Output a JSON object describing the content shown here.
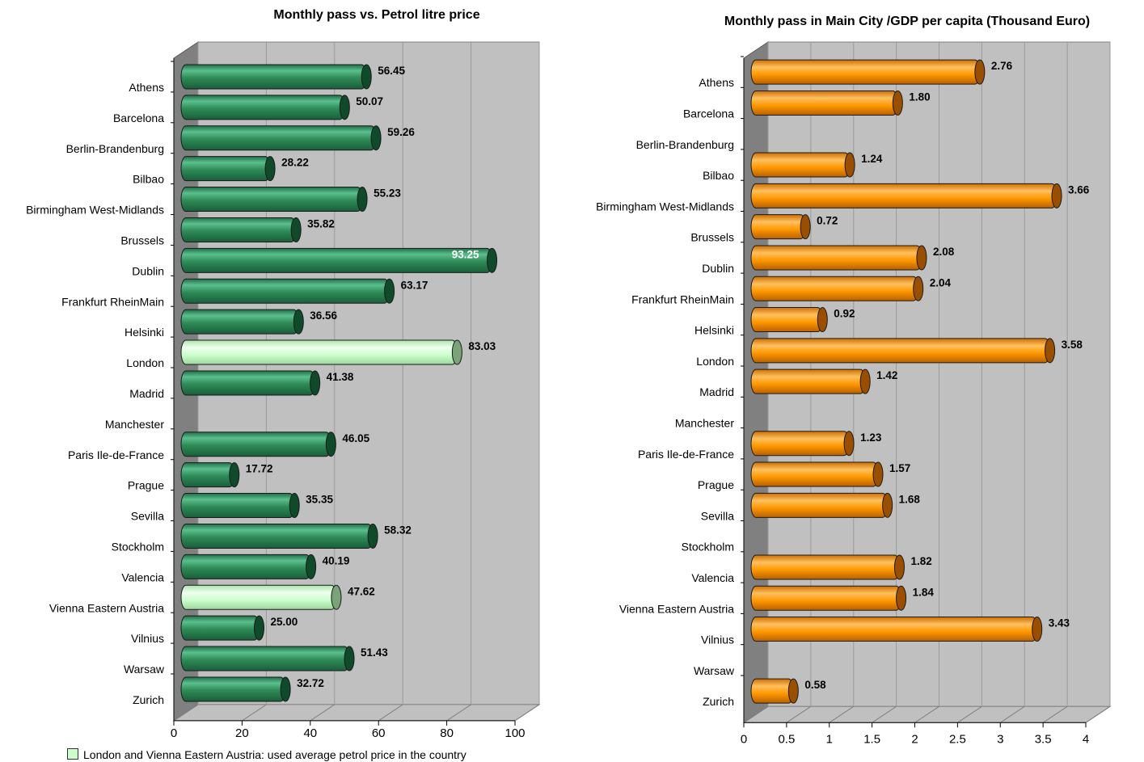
{
  "chart_data": [
    {
      "type": "bar",
      "orientation": "horizontal",
      "title": "Monthly pass vs. Petrol litre price",
      "categories": [
        "Athens",
        "Barcelona",
        "Berlin-Brandenburg",
        "Bilbao",
        "Birmingham West-Midlands",
        "Brussels",
        "Dublin",
        "Frankfurt RheinMain",
        "Helsinki",
        "London",
        "Madrid",
        "Manchester",
        "Paris Ile-de-France",
        "Prague",
        "Sevilla",
        "Stockholm",
        "Valencia",
        "Vienna Eastern Austria",
        "Vilnius",
        "Warsaw",
        "Zurich"
      ],
      "values": [
        56.45,
        50.07,
        59.26,
        28.22,
        55.23,
        35.82,
        93.25,
        63.17,
        36.56,
        83.03,
        41.38,
        null,
        46.05,
        17.72,
        35.35,
        58.32,
        40.19,
        47.62,
        25.0,
        51.43,
        32.72
      ],
      "value_labels": [
        "56.45",
        "50.07",
        "59.26",
        "28.22",
        "55.23",
        "35.82",
        "93.25",
        "63.17",
        "36.56",
        "83.03",
        "41.38",
        "",
        "46.05",
        "17.72",
        "35.35",
        "58.32",
        "40.19",
        "47.62",
        "25.00",
        "51.43",
        "32.72"
      ],
      "highlighted": [
        "London",
        "Vienna Eastern Austria"
      ],
      "xlim": [
        0,
        100
      ],
      "xticks": [
        "0",
        "20",
        "40",
        "60",
        "80",
        "100"
      ],
      "bar_color": "#2e8b57",
      "highlight_color": "#ccffcc",
      "grid": true
    },
    {
      "type": "bar",
      "orientation": "horizontal",
      "title": "Monthly pass in Main City /GDP per capita (Thousand Euro)",
      "categories": [
        "Athens",
        "Barcelona",
        "Berlin-Brandenburg",
        "Bilbao",
        "Birmingham West-Midlands",
        "Brussels",
        "Dublin",
        "Frankfurt RheinMain",
        "Helsinki",
        "London",
        "Madrid",
        "Manchester",
        "Paris Ile-de-France",
        "Prague",
        "Sevilla",
        "Stockholm",
        "Valencia",
        "Vienna Eastern Austria",
        "Vilnius",
        "Warsaw",
        "Zurich"
      ],
      "values": [
        2.76,
        1.8,
        null,
        1.24,
        3.66,
        0.72,
        2.08,
        2.04,
        0.92,
        3.58,
        1.42,
        null,
        1.23,
        1.57,
        1.68,
        null,
        1.82,
        1.84,
        3.43,
        null,
        0.58
      ],
      "value_labels": [
        "2.76",
        "1.80",
        "",
        "1.24",
        "3.66",
        "0.72",
        "2.08",
        "2.04",
        "0.92",
        "3.58",
        "1.42",
        "",
        "1.23",
        "1.57",
        "1.68",
        "",
        "1.82",
        "1.84",
        "3.43",
        "",
        "0.58"
      ],
      "xlim": [
        0,
        4
      ],
      "xticks": [
        "0",
        "0.5",
        "1",
        "1.5",
        "2",
        "2.5",
        "3",
        "3.5",
        "4"
      ],
      "bar_color": "#ff9900",
      "grid": true
    }
  ],
  "footnote": "London and Vienna Eastern Austria: used average petrol price in the country"
}
